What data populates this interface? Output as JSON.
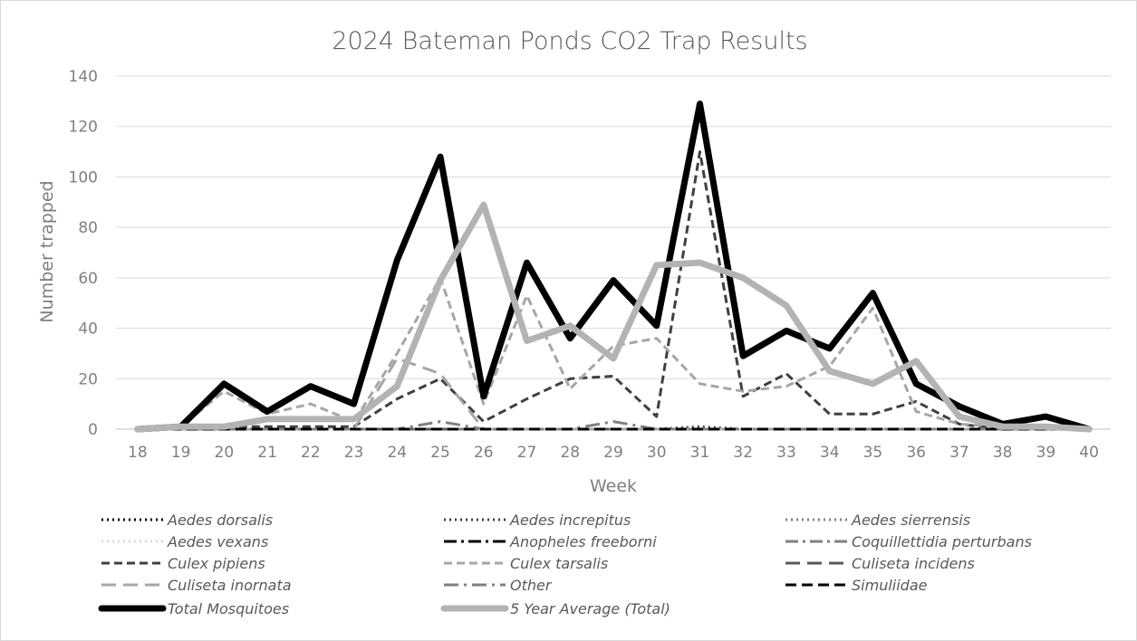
{
  "chart_data": {
    "type": "line",
    "title": "2024 Bateman Ponds CO2 Trap Results",
    "xlabel": "Week",
    "ylabel": "Number trapped",
    "ylim": [
      0,
      140
    ],
    "yticks": [
      0,
      20,
      40,
      60,
      80,
      100,
      120,
      140
    ],
    "x": [
      "18",
      "19",
      "20",
      "21",
      "22",
      "23",
      "24",
      "25",
      "26",
      "27",
      "28",
      "29",
      "30",
      "31",
      "32",
      "33",
      "34",
      "35",
      "36",
      "37",
      "38",
      "39",
      "40"
    ],
    "grid": true,
    "legend_position": "bottom",
    "series": [
      {
        "name": "Aedes dorsalis",
        "color": "#000000",
        "width": 3,
        "dash": "2 4",
        "values": [
          0,
          0,
          0,
          0,
          0,
          0,
          0,
          0,
          0,
          0,
          0,
          0,
          0,
          0,
          0,
          0,
          0,
          0,
          0,
          0,
          0,
          0,
          0
        ]
      },
      {
        "name": "Aedes increpitus",
        "color": "#404040",
        "width": 3,
        "dash": "2 4",
        "values": [
          0,
          0,
          0,
          0,
          0,
          0,
          0,
          0,
          0,
          0,
          0,
          0,
          0,
          1,
          0,
          0,
          0,
          0,
          0,
          0,
          0,
          0,
          0
        ]
      },
      {
        "name": "Aedes sierrensis",
        "color": "#808080",
        "width": 3,
        "dash": "2 4",
        "values": [
          0,
          0,
          0,
          0,
          0,
          0,
          0,
          0,
          0,
          0,
          0,
          0,
          0,
          0,
          0,
          0,
          0,
          0,
          0,
          0,
          0,
          0,
          0
        ]
      },
      {
        "name": "Aedes vexans",
        "color": "#d9d9d9",
        "width": 3,
        "dash": "2 4",
        "values": [
          0,
          0,
          0,
          0,
          0,
          0,
          0,
          0,
          0,
          0,
          0,
          0,
          0,
          0,
          0,
          0,
          0,
          0,
          0,
          0,
          0,
          0,
          0
        ]
      },
      {
        "name": "Anopheles freeborni",
        "color": "#000000",
        "width": 3,
        "dash": "14 5 3 5",
        "values": [
          0,
          0,
          0,
          0,
          0,
          0,
          0,
          0,
          0,
          0,
          0,
          0,
          0,
          0,
          0,
          0,
          0,
          0,
          0,
          0,
          0,
          0,
          0
        ]
      },
      {
        "name": "Coquillettidia perturbans",
        "color": "#808080",
        "width": 3,
        "dash": "14 5 3 5",
        "values": [
          0,
          0,
          0,
          0,
          0,
          0,
          0,
          0,
          0,
          0,
          0,
          0,
          0,
          0,
          0,
          0,
          0,
          0,
          0,
          0,
          0,
          0,
          0
        ]
      },
      {
        "name": "Culex pipiens",
        "color": "#404040",
        "width": 3,
        "dash": "9 5",
        "values": [
          0,
          0,
          1,
          1,
          1,
          1,
          12,
          20,
          3,
          12,
          20,
          21,
          5,
          110,
          13,
          22,
          6,
          6,
          11,
          2,
          0,
          0,
          0
        ]
      },
      {
        "name": "Culex tarsalis",
        "color": "#a6a6a6",
        "width": 3,
        "dash": "9 5",
        "values": [
          0,
          1,
          15,
          6,
          10,
          3,
          30,
          60,
          10,
          53,
          16,
          33,
          36,
          18,
          15,
          17,
          25,
          48,
          7,
          2,
          1,
          1,
          0
        ]
      },
      {
        "name": "Culiseta incidens",
        "color": "#595959",
        "width": 3,
        "dash": "16 8",
        "values": [
          0,
          0,
          0,
          0,
          0,
          0,
          0,
          0,
          0,
          0,
          0,
          0,
          0,
          0,
          0,
          0,
          0,
          0,
          0,
          0,
          0,
          0,
          0
        ]
      },
      {
        "name": "Culiseta inornata",
        "color": "#a6a6a6",
        "width": 3,
        "dash": "16 8",
        "values": [
          0,
          0,
          0,
          0,
          0,
          0,
          28,
          22,
          0,
          0,
          0,
          0,
          0,
          0,
          0,
          0,
          0,
          0,
          0,
          0,
          0,
          0,
          0
        ]
      },
      {
        "name": "Other",
        "color": "#808080",
        "width": 3,
        "dash": "16 6 3 6",
        "values": [
          0,
          0,
          0,
          0,
          0,
          0,
          0,
          3,
          0,
          0,
          0,
          3,
          0,
          0,
          0,
          0,
          0,
          0,
          0,
          0,
          0,
          0,
          0
        ]
      },
      {
        "name": "Simuliidae",
        "color": "#000000",
        "width": 3,
        "dash": "12 6",
        "values": [
          0,
          0,
          0,
          0,
          0,
          0,
          0,
          0,
          0,
          0,
          0,
          0,
          0,
          0,
          0,
          0,
          0,
          0,
          0,
          0,
          0,
          0,
          0
        ]
      },
      {
        "name": "Total Mosquitoes",
        "color": "#000000",
        "width": 7,
        "dash": "",
        "values": [
          0,
          1,
          18,
          7,
          17,
          10,
          67,
          108,
          13,
          66,
          36,
          59,
          41,
          129,
          29,
          39,
          32,
          54,
          18,
          9,
          2,
          5,
          0
        ]
      },
      {
        "name": "5 Year Average (Total)",
        "color": "#b3b3b3",
        "width": 7,
        "dash": "",
        "values": [
          0,
          1,
          1,
          4,
          4,
          4,
          17,
          59,
          89,
          35,
          41,
          28,
          65,
          66,
          60,
          49,
          23,
          18,
          27,
          5,
          1,
          1,
          0
        ]
      }
    ]
  }
}
